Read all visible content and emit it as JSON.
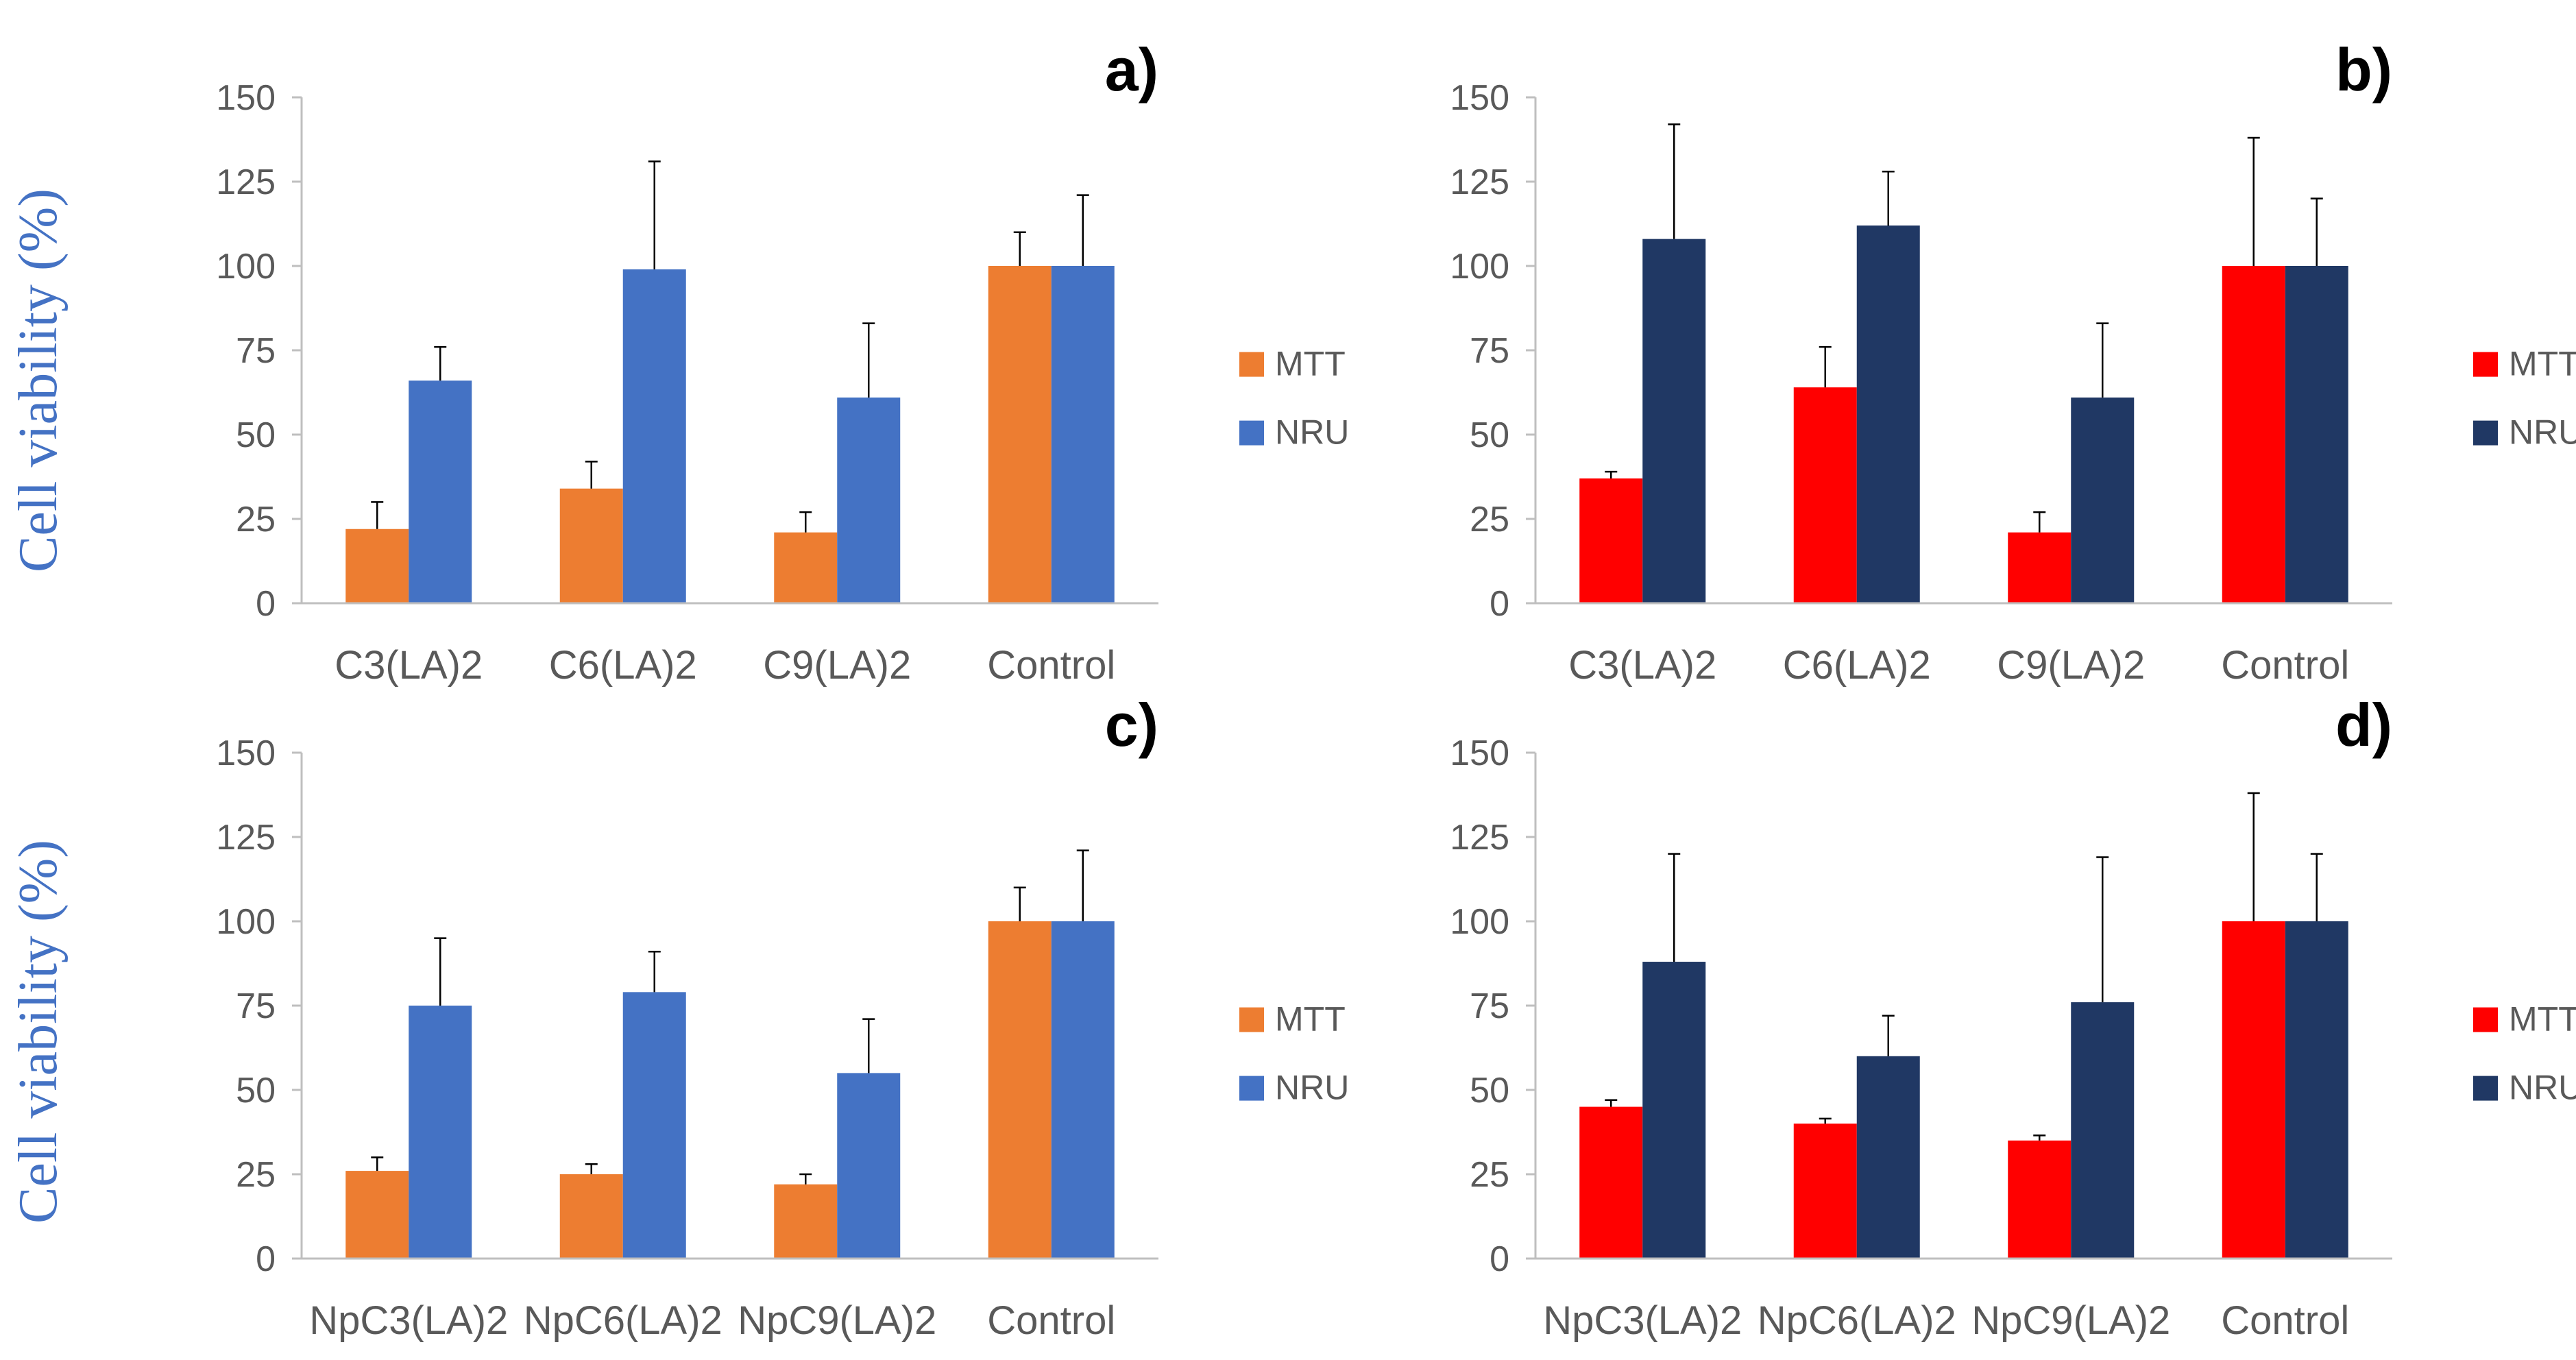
{
  "colors": {
    "orange": "#ed7d31",
    "light_blue": "#4472c4",
    "red": "#ff0000",
    "navy": "#203864",
    "axis": "#bfbfbf",
    "text": "#595959",
    "ylabel": "#4472c4"
  },
  "ylabel": "Cell viability (%)",
  "chart_data": [
    {
      "type": "bar",
      "panel_label": "a)",
      "categories": [
        "C3(LA)2",
        "C6(LA)2",
        "C9(LA)2",
        "Control"
      ],
      "series": [
        {
          "name": "MTT",
          "color": "#ed7d31",
          "values": [
            22,
            34,
            21,
            100
          ],
          "errors": [
            8,
            8,
            6,
            10
          ]
        },
        {
          "name": "NRU",
          "color": "#4472c4",
          "values": [
            66,
            99,
            61,
            100
          ],
          "errors": [
            10,
            32,
            22,
            21
          ]
        }
      ],
      "ylim": [
        0,
        150
      ],
      "yticks": [
        0,
        25,
        50,
        75,
        100,
        125,
        150
      ],
      "legend": "right"
    },
    {
      "type": "bar",
      "panel_label": "b)",
      "categories": [
        "C3(LA)2",
        "C6(LA)2",
        "C9(LA)2",
        "Control"
      ],
      "series": [
        {
          "name": "MTT",
          "color": "#ff0000",
          "values": [
            37,
            64,
            21,
            100
          ],
          "errors": [
            2,
            12,
            6,
            38
          ]
        },
        {
          "name": "NRU",
          "color": "#203864",
          "values": [
            108,
            112,
            61,
            100
          ],
          "errors": [
            34,
            16,
            22,
            20
          ]
        }
      ],
      "ylim": [
        0,
        150
      ],
      "yticks": [
        0,
        25,
        50,
        75,
        100,
        125,
        150
      ],
      "legend": "right"
    },
    {
      "type": "bar",
      "panel_label": "c)",
      "categories": [
        "NpC3(LA)2",
        "NpC6(LA)2",
        "NpC9(LA)2",
        "Control"
      ],
      "series": [
        {
          "name": "MTT",
          "color": "#ed7d31",
          "values": [
            26,
            25,
            22,
            100
          ],
          "errors": [
            4,
            3,
            3,
            10
          ]
        },
        {
          "name": "NRU",
          "color": "#4472c4",
          "values": [
            75,
            79,
            55,
            100
          ],
          "errors": [
            20,
            12,
            16,
            21
          ]
        }
      ],
      "ylim": [
        0,
        150
      ],
      "yticks": [
        0,
        25,
        50,
        75,
        100,
        125,
        150
      ],
      "legend": "right"
    },
    {
      "type": "bar",
      "panel_label": "d)",
      "categories": [
        "NpC3(LA)2",
        "NpC6(LA)2",
        "NpC9(LA)2",
        "Control"
      ],
      "series": [
        {
          "name": "MTT",
          "color": "#ff0000",
          "values": [
            45,
            40,
            35,
            100
          ],
          "errors": [
            2,
            1.5,
            1.5,
            38
          ]
        },
        {
          "name": "NRU",
          "color": "#203864",
          "values": [
            88,
            60,
            76,
            100
          ],
          "errors": [
            32,
            12,
            43,
            20
          ]
        }
      ],
      "ylim": [
        0,
        150
      ],
      "yticks": [
        0,
        25,
        50,
        75,
        100,
        125,
        150
      ],
      "legend": "right"
    }
  ]
}
